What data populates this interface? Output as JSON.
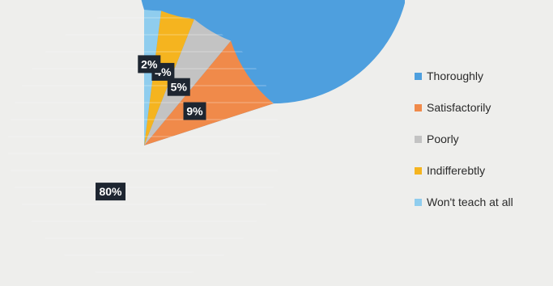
{
  "chart_data": {
    "type": "pie",
    "categories": [
      "Thoroughly",
      "Satisfactorily",
      "Poorly",
      "Indifferebtly",
      "Won't teach at all"
    ],
    "values": [
      80,
      9,
      5,
      4,
      2
    ],
    "data_labels": [
      "80%",
      "9%",
      "5%",
      "4%",
      "2%"
    ],
    "colors": [
      "#4e9fde",
      "#f08a4a",
      "#c3c3c3",
      "#f5b41f",
      "#8fcdee"
    ],
    "legend_position": "right",
    "start": "12 o'clock, clockwise"
  }
}
